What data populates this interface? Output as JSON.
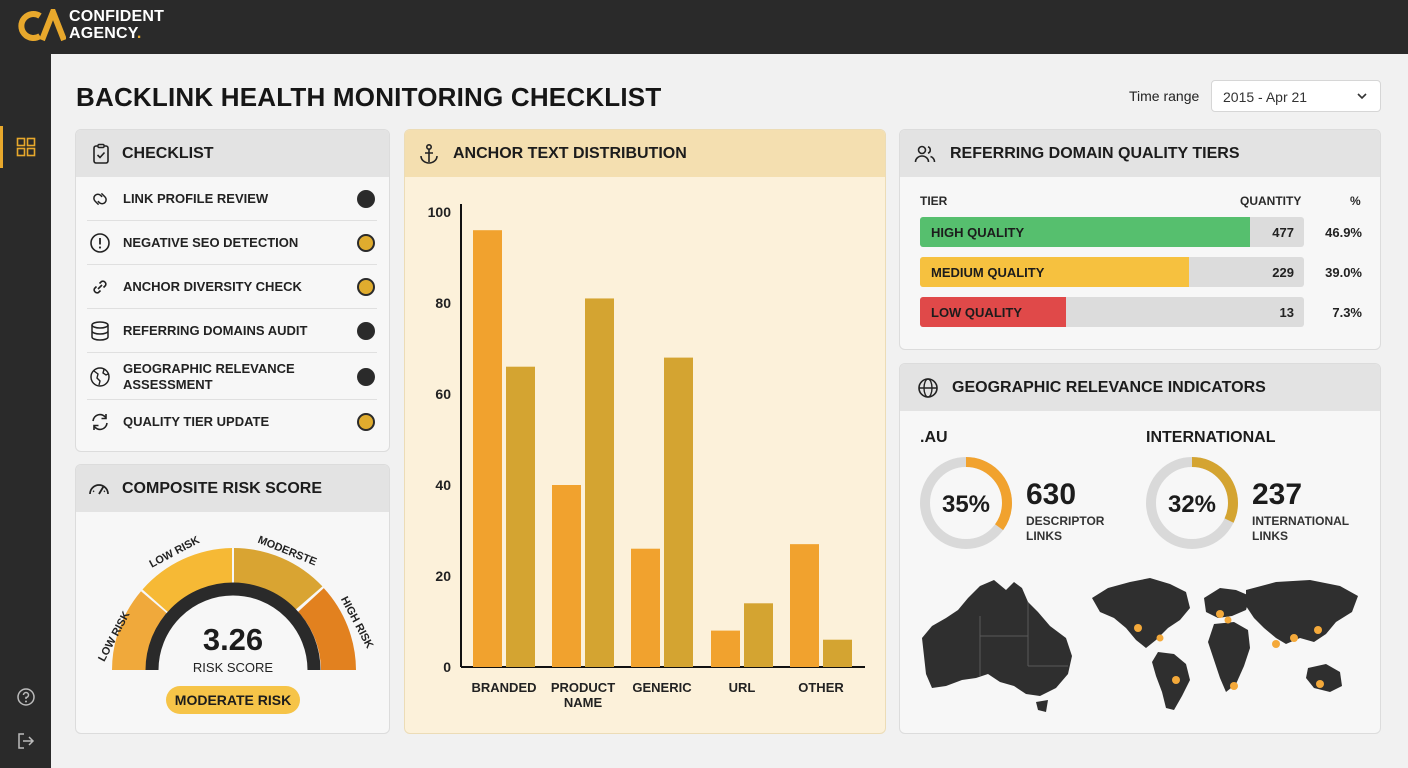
{
  "brand": {
    "line1": "CONFIDENT",
    "line2": "AGENCY",
    "dot": "."
  },
  "page": {
    "title": "BACKLINK HEALTH MONITORING CHECKLIST"
  },
  "time_range": {
    "label": "Time range",
    "value": "2015 - Apr 21"
  },
  "checklist": {
    "title": "CHECKLIST",
    "items": [
      {
        "label": "LINK PROFILE REVIEW",
        "icon": "link-profile-icon",
        "status": "dark"
      },
      {
        "label": "NEGATIVE SEO DETECTION",
        "icon": "alert-icon",
        "status": "amber"
      },
      {
        "label": "ANCHOR DIVERSITY CHECK",
        "icon": "chain-link-icon",
        "status": "amber"
      },
      {
        "label": "REFERRING DOMAINS AUDIT",
        "icon": "database-icon",
        "status": "dark"
      },
      {
        "label": "GEOGRAPHIC RELEVANCE ASSESSMENT",
        "line1": "GEOGRAPHIC RELEVANCE",
        "line2": "ASSESSMENT",
        "icon": "globe-icon",
        "status": "dark"
      },
      {
        "label": "QUALITY TIER UPDATE",
        "icon": "refresh-icon",
        "status": "amber"
      }
    ]
  },
  "risk": {
    "title": "COMPOSITE RISK SCORE",
    "value": "3.26",
    "value_label": "RISK SCORE",
    "badge": "MODERATE RISK",
    "segments": [
      "LOW RISK",
      "LOW RISK",
      "MODERSTE",
      "HIGH RISK"
    ],
    "score": 3.26
  },
  "anchor": {
    "title": "ANCHOR TEXT DISTRIBUTION"
  },
  "chart_data": {
    "type": "bar",
    "title": "ANCHOR TEXT DISTRIBUTION",
    "categories": [
      "BRANDED",
      "PRODUCT NAME",
      "GENERIC",
      "URL",
      "OTHER"
    ],
    "category_lines": [
      [
        "BRANDED"
      ],
      [
        "PRODUCT",
        "NAME"
      ],
      [
        "GENERIC"
      ],
      [
        "URL"
      ],
      [
        "OTHER"
      ]
    ],
    "series": [
      {
        "values": [
          96,
          40,
          26,
          8,
          27
        ],
        "color": "#f1a22e"
      },
      {
        "values": [
          66,
          81,
          68,
          14,
          6
        ],
        "color": "#d4a431"
      }
    ],
    "ylim": [
      0,
      100
    ],
    "yticks": [
      0,
      20,
      40,
      60,
      80,
      100
    ],
    "grid": false
  },
  "tiers": {
    "title": "REFERRING DOMAIN QUALITY TIERS",
    "headers": {
      "tier": "TIER",
      "quantity": "QUANTITY",
      "pct": "%"
    },
    "rows": [
      {
        "name": "HIGH QUALITY",
        "qty": "477",
        "pct": "46.9%",
        "fill": 0.86,
        "color": "#56bf6e"
      },
      {
        "name": "MEDIUM QUALITY",
        "qty": "229",
        "pct": "39.0%",
        "fill": 0.7,
        "color": "#f6c13f"
      },
      {
        "name": "LOW QUALITY",
        "qty": "13",
        "pct": "7.3%",
        "fill": 0.38,
        "color": "#e04949"
      }
    ]
  },
  "geo": {
    "title": "GEOGRAPHIC RELEVANCE INDICATORS",
    "au": {
      "label": ".AU",
      "pct_text": "35%",
      "pct": 0.35,
      "count": "630",
      "sub1": "DESCRIPTOR",
      "sub2": "LINKS",
      "color": "#f1a22e"
    },
    "intl": {
      "label": "INTERNATIONAL",
      "pct_text": "32%",
      "pct": 0.32,
      "count": "237",
      "sub1": "INTERNATIONAL",
      "sub2": "LINKS",
      "color": "#d4a431"
    }
  },
  "colors": {
    "accent": "#e8a82c",
    "dark": "#2a2a2a",
    "amber_dot": "#e0ac2e"
  }
}
